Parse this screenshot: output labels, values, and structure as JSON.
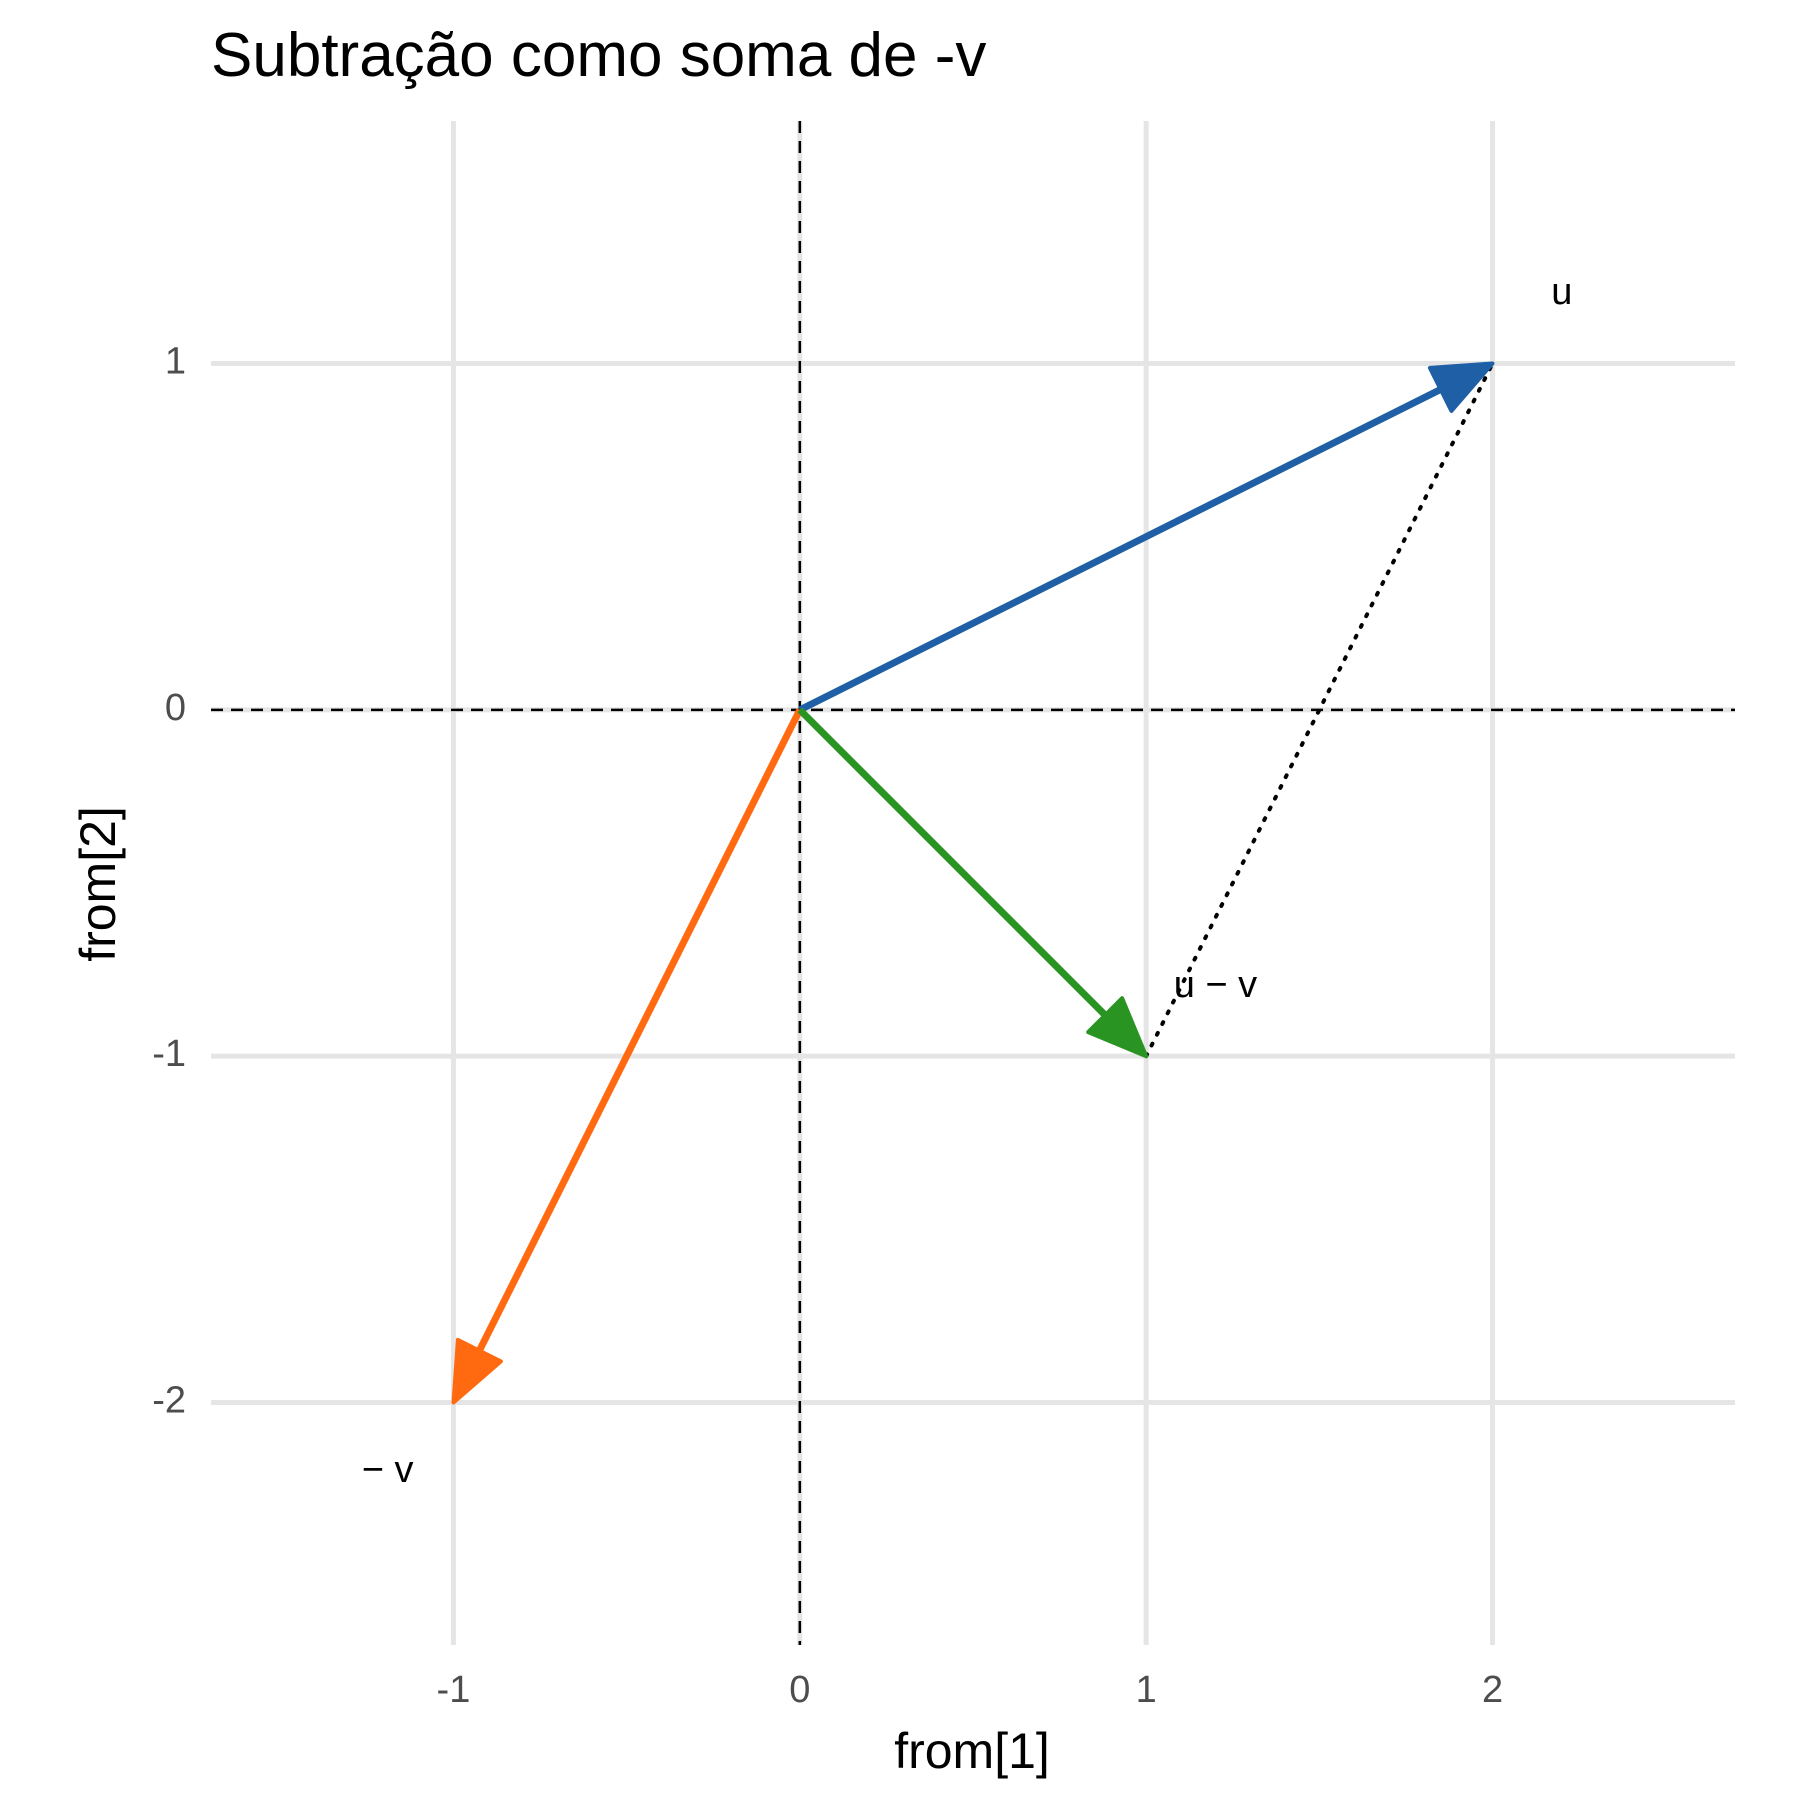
{
  "chart_data": {
    "type": "vector",
    "title": "Subtração como soma de -v",
    "xlabel": "from[1]",
    "ylabel": "from[2]",
    "xlim": [
      -1.7,
      2.7
    ],
    "ylim": [
      -2.7,
      1.7
    ],
    "x_ticks": [
      -1,
      0,
      1,
      2
    ],
    "x_tick_labels": [
      "-1",
      "0",
      "1",
      "2"
    ],
    "y_ticks": [
      -2,
      -1,
      0,
      1
    ],
    "y_tick_labels": [
      "-2",
      "-1",
      "0",
      "1"
    ],
    "grid": true,
    "reference_lines": {
      "x": 0,
      "y": 0,
      "style": "dashed"
    },
    "vectors": [
      {
        "id": "u",
        "label": "u",
        "from": [
          0,
          0
        ],
        "to": [
          2,
          1
        ],
        "color": "#1f5fa6",
        "label_at": [
          2.2,
          1.2
        ]
      },
      {
        "id": "neg-v",
        "label": "− v",
        "from": [
          0,
          0
        ],
        "to": [
          -1,
          -2
        ],
        "color": "#ff6a10",
        "label_at": [
          -1.19,
          -2.2
        ]
      },
      {
        "id": "u-minus-v",
        "label": "u − v",
        "from": [
          0,
          0
        ],
        "to": [
          1,
          -1
        ],
        "color": "#2a9423",
        "label_at": [
          1.2,
          -0.8
        ]
      }
    ],
    "connector": {
      "from": [
        1,
        -1
      ],
      "to": [
        2,
        1
      ],
      "style": "dotted",
      "color": "#000000"
    }
  }
}
